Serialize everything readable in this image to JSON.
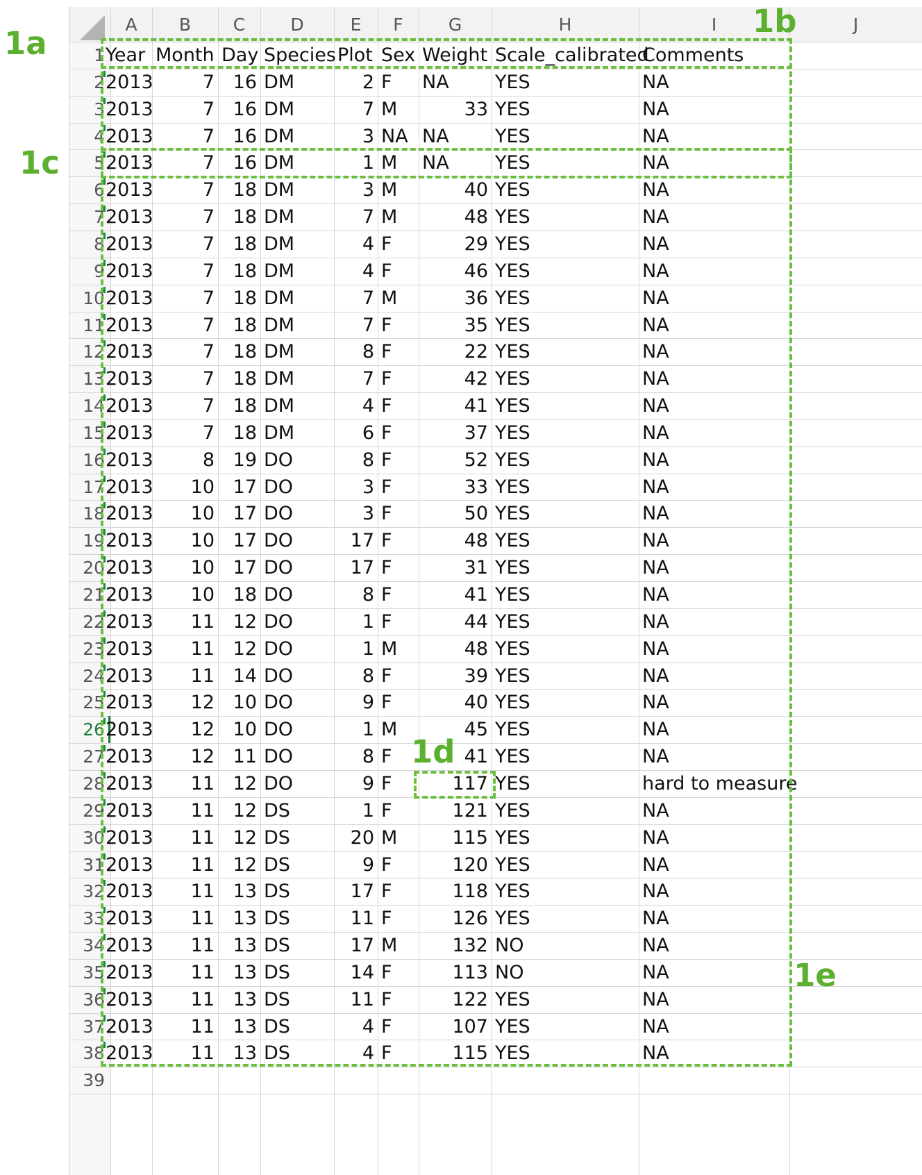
{
  "spreadsheet": {
    "columns": [
      "A",
      "B",
      "C",
      "D",
      "E",
      "F",
      "G",
      "H",
      "I",
      "J"
    ],
    "rows": [
      [
        "Year",
        "Month",
        "Day",
        "Species",
        "Plot",
        "Sex",
        "Weight",
        "Scale_calibrated",
        "Comments"
      ],
      [
        "2013",
        "7",
        "16",
        "DM",
        "2",
        "F",
        "NA",
        "YES",
        "NA"
      ],
      [
        "2013",
        "7",
        "16",
        "DM",
        "7",
        "M",
        "33",
        "YES",
        "NA"
      ],
      [
        "2013",
        "7",
        "16",
        "DM",
        "3",
        "NA",
        "NA",
        "YES",
        "NA"
      ],
      [
        "2013",
        "7",
        "16",
        "DM",
        "1",
        "M",
        "NA",
        "YES",
        "NA"
      ],
      [
        "2013",
        "7",
        "18",
        "DM",
        "3",
        "M",
        "40",
        "YES",
        "NA"
      ],
      [
        "2013",
        "7",
        "18",
        "DM",
        "7",
        "M",
        "48",
        "YES",
        "NA"
      ],
      [
        "2013",
        "7",
        "18",
        "DM",
        "4",
        "F",
        "29",
        "YES",
        "NA"
      ],
      [
        "2013",
        "7",
        "18",
        "DM",
        "4",
        "F",
        "46",
        "YES",
        "NA"
      ],
      [
        "2013",
        "7",
        "18",
        "DM",
        "7",
        "M",
        "36",
        "YES",
        "NA"
      ],
      [
        "2013",
        "7",
        "18",
        "DM",
        "7",
        "F",
        "35",
        "YES",
        "NA"
      ],
      [
        "2013",
        "7",
        "18",
        "DM",
        "8",
        "F",
        "22",
        "YES",
        "NA"
      ],
      [
        "2013",
        "7",
        "18",
        "DM",
        "7",
        "F",
        "42",
        "YES",
        "NA"
      ],
      [
        "2013",
        "7",
        "18",
        "DM",
        "4",
        "F",
        "41",
        "YES",
        "NA"
      ],
      [
        "2013",
        "7",
        "18",
        "DM",
        "6",
        "F",
        "37",
        "YES",
        "NA"
      ],
      [
        "2013",
        "8",
        "19",
        "DO",
        "8",
        "F",
        "52",
        "YES",
        "NA"
      ],
      [
        "2013",
        "10",
        "17",
        "DO",
        "3",
        "F",
        "33",
        "YES",
        "NA"
      ],
      [
        "2013",
        "10",
        "17",
        "DO",
        "3",
        "F",
        "50",
        "YES",
        "NA"
      ],
      [
        "2013",
        "10",
        "17",
        "DO",
        "17",
        "F",
        "48",
        "YES",
        "NA"
      ],
      [
        "2013",
        "10",
        "17",
        "DO",
        "17",
        "F",
        "31",
        "YES",
        "NA"
      ],
      [
        "2013",
        "10",
        "18",
        "DO",
        "8",
        "F",
        "41",
        "YES",
        "NA"
      ],
      [
        "2013",
        "11",
        "12",
        "DO",
        "1",
        "F",
        "44",
        "YES",
        "NA"
      ],
      [
        "2013",
        "11",
        "12",
        "DO",
        "1",
        "M",
        "48",
        "YES",
        "NA"
      ],
      [
        "2013",
        "11",
        "14",
        "DO",
        "8",
        "F",
        "39",
        "YES",
        "NA"
      ],
      [
        "2013",
        "12",
        "10",
        "DO",
        "9",
        "F",
        "40",
        "YES",
        "NA"
      ],
      [
        "2013",
        "12",
        "10",
        "DO",
        "1",
        "M",
        "45",
        "YES",
        "NA"
      ],
      [
        "2013",
        "12",
        "11",
        "DO",
        "8",
        "F",
        "41",
        "YES",
        "NA"
      ],
      [
        "2013",
        "11",
        "12",
        "DO",
        "9",
        "F",
        "117",
        "YES",
        "hard to measure"
      ],
      [
        "2013",
        "11",
        "12",
        "DS",
        "1",
        "F",
        "121",
        "YES",
        "NA"
      ],
      [
        "2013",
        "11",
        "12",
        "DS",
        "20",
        "M",
        "115",
        "YES",
        "NA"
      ],
      [
        "2013",
        "11",
        "12",
        "DS",
        "9",
        "F",
        "120",
        "YES",
        "NA"
      ],
      [
        "2013",
        "11",
        "13",
        "DS",
        "17",
        "F",
        "118",
        "YES",
        "NA"
      ],
      [
        "2013",
        "11",
        "13",
        "DS",
        "11",
        "F",
        "126",
        "YES",
        "NA"
      ],
      [
        "2013",
        "11",
        "13",
        "DS",
        "17",
        "M",
        "132",
        "NO",
        "NA"
      ],
      [
        "2013",
        "11",
        "13",
        "DS",
        "14",
        "F",
        "113",
        "NO",
        "NA"
      ],
      [
        "2013",
        "11",
        "13",
        "DS",
        "11",
        "F",
        "122",
        "YES",
        "NA"
      ],
      [
        "2013",
        "11",
        "13",
        "DS",
        "4",
        "F",
        "107",
        "YES",
        "NA"
      ],
      [
        "2013",
        "11",
        "13",
        "DS",
        "4",
        "F",
        "115",
        "YES",
        "NA"
      ]
    ],
    "extra_row_label": "39",
    "active_row": "26"
  },
  "annotations": {
    "whole_table": "1a",
    "header_row": "1b",
    "single_row": "1c",
    "single_cell": "1d",
    "data_region": "1e"
  },
  "colors": {
    "annotation": "#6bbf3f",
    "active_row": "#1f7a3a"
  }
}
